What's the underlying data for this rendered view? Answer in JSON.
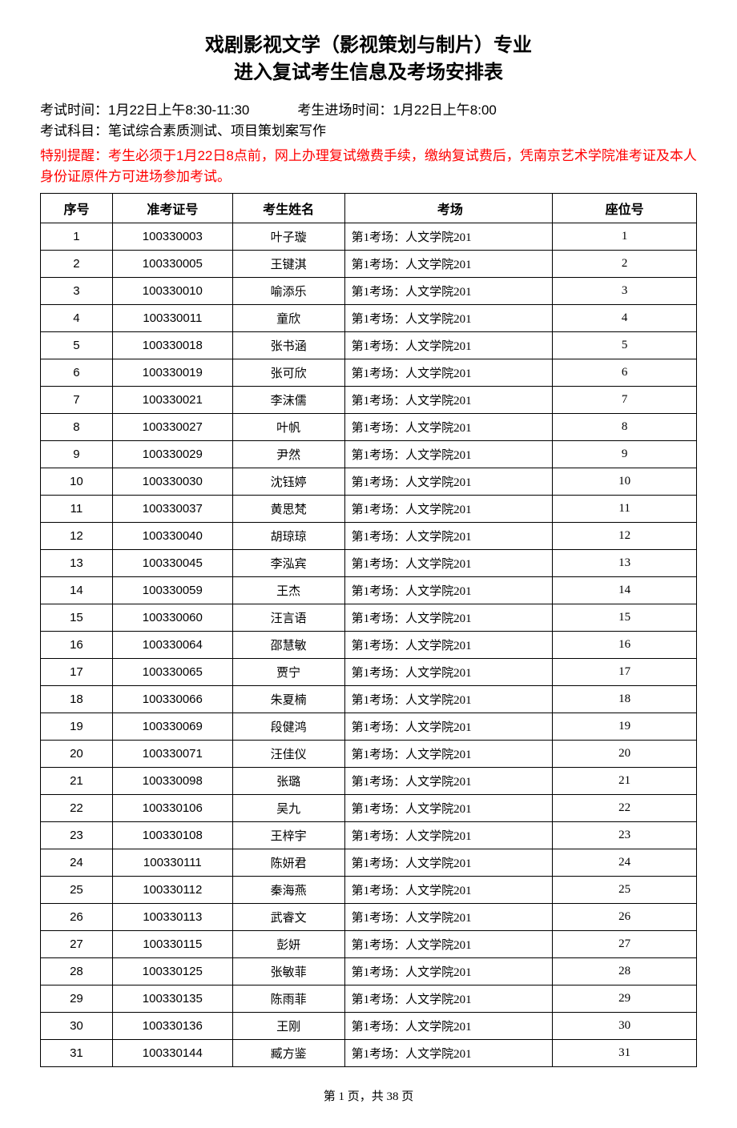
{
  "title": {
    "line1": "戏剧影视文学（影视策划与制片）专业",
    "line2": "进入复试考生信息及考场安排表"
  },
  "info": {
    "exam_time_label": "考试时间：",
    "exam_time_value": "1月22日上午8:30-11:30",
    "entry_time_label": "考生进场时间：",
    "entry_time_value": "1月22日上午8:00",
    "subject_label": "考试科目：",
    "subject_value": "笔试综合素质测试、项目策划案写作"
  },
  "notice": {
    "label": "特别提醒：",
    "text": "考生必须于1月22日8点前，网上办理复试缴费手续，缴纳复试费后，凭南京艺术学院准考证及本人身份证原件方可进场参加考试。"
  },
  "table": {
    "headers": {
      "seq": "序号",
      "id": "准考证号",
      "name": "考生姓名",
      "room": "考场",
      "seat": "座位号"
    },
    "rows": [
      {
        "seq": "1",
        "id": "100330003",
        "name": "叶子璇",
        "room": "第1考场：人文学院201",
        "seat": "1"
      },
      {
        "seq": "2",
        "id": "100330005",
        "name": "王键淇",
        "room": "第1考场：人文学院201",
        "seat": "2"
      },
      {
        "seq": "3",
        "id": "100330010",
        "name": "喻添乐",
        "room": "第1考场：人文学院201",
        "seat": "3"
      },
      {
        "seq": "4",
        "id": "100330011",
        "name": "童欣",
        "room": "第1考场：人文学院201",
        "seat": "4"
      },
      {
        "seq": "5",
        "id": "100330018",
        "name": "张书涵",
        "room": "第1考场：人文学院201",
        "seat": "5"
      },
      {
        "seq": "6",
        "id": "100330019",
        "name": "张可欣",
        "room": "第1考场：人文学院201",
        "seat": "6"
      },
      {
        "seq": "7",
        "id": "100330021",
        "name": "李沫儒",
        "room": "第1考场：人文学院201",
        "seat": "7"
      },
      {
        "seq": "8",
        "id": "100330027",
        "name": "叶帆",
        "room": "第1考场：人文学院201",
        "seat": "8"
      },
      {
        "seq": "9",
        "id": "100330029",
        "name": "尹然",
        "room": "第1考场：人文学院201",
        "seat": "9"
      },
      {
        "seq": "10",
        "id": "100330030",
        "name": "沈钰婷",
        "room": "第1考场：人文学院201",
        "seat": "10"
      },
      {
        "seq": "11",
        "id": "100330037",
        "name": "黄思梵",
        "room": "第1考场：人文学院201",
        "seat": "11"
      },
      {
        "seq": "12",
        "id": "100330040",
        "name": "胡琼琼",
        "room": "第1考场：人文学院201",
        "seat": "12"
      },
      {
        "seq": "13",
        "id": "100330045",
        "name": "李泓宾",
        "room": "第1考场：人文学院201",
        "seat": "13"
      },
      {
        "seq": "14",
        "id": "100330059",
        "name": "王杰",
        "room": "第1考场：人文学院201",
        "seat": "14"
      },
      {
        "seq": "15",
        "id": "100330060",
        "name": "汪言语",
        "room": "第1考场：人文学院201",
        "seat": "15"
      },
      {
        "seq": "16",
        "id": "100330064",
        "name": "邵慧敏",
        "room": "第1考场：人文学院201",
        "seat": "16"
      },
      {
        "seq": "17",
        "id": "100330065",
        "name": "贾宁",
        "room": "第1考场：人文学院201",
        "seat": "17"
      },
      {
        "seq": "18",
        "id": "100330066",
        "name": "朱夏楠",
        "room": "第1考场：人文学院201",
        "seat": "18"
      },
      {
        "seq": "19",
        "id": "100330069",
        "name": "段健鸿",
        "room": "第1考场：人文学院201",
        "seat": "19"
      },
      {
        "seq": "20",
        "id": "100330071",
        "name": "汪佳仪",
        "room": "第1考场：人文学院201",
        "seat": "20"
      },
      {
        "seq": "21",
        "id": "100330098",
        "name": "张璐",
        "room": "第1考场：人文学院201",
        "seat": "21"
      },
      {
        "seq": "22",
        "id": "100330106",
        "name": "吴九",
        "room": "第1考场：人文学院201",
        "seat": "22"
      },
      {
        "seq": "23",
        "id": "100330108",
        "name": "王梓宇",
        "room": "第1考场：人文学院201",
        "seat": "23"
      },
      {
        "seq": "24",
        "id": "100330111",
        "name": "陈妍君",
        "room": "第1考场：人文学院201",
        "seat": "24"
      },
      {
        "seq": "25",
        "id": "100330112",
        "name": "秦海燕",
        "room": "第1考场：人文学院201",
        "seat": "25"
      },
      {
        "seq": "26",
        "id": "100330113",
        "name": "武睿文",
        "room": "第1考场：人文学院201",
        "seat": "26"
      },
      {
        "seq": "27",
        "id": "100330115",
        "name": "彭妍",
        "room": "第1考场：人文学院201",
        "seat": "27"
      },
      {
        "seq": "28",
        "id": "100330125",
        "name": "张敏菲",
        "room": "第1考场：人文学院201",
        "seat": "28"
      },
      {
        "seq": "29",
        "id": "100330135",
        "name": "陈雨菲",
        "room": "第1考场：人文学院201",
        "seat": "29"
      },
      {
        "seq": "30",
        "id": "100330136",
        "name": "王刚",
        "room": "第1考场：人文学院201",
        "seat": "30"
      },
      {
        "seq": "31",
        "id": "100330144",
        "name": "臧方鉴",
        "room": "第1考场：人文学院201",
        "seat": "31"
      }
    ]
  },
  "footer": {
    "text": "第 1 页，共 38 页"
  },
  "colors": {
    "text": "#000000",
    "notice": "#ff0000",
    "background": "#ffffff",
    "border": "#000000"
  }
}
